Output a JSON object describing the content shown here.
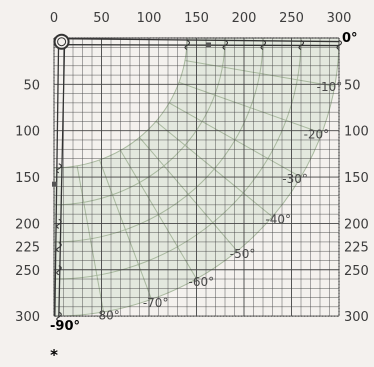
{
  "diagram": {
    "x_ticks": [
      "0",
      "50",
      "100",
      "150",
      "200",
      "250",
      "300"
    ],
    "x_tick_values": [
      0,
      50,
      100,
      150,
      200,
      250,
      300
    ],
    "y_left_ticks": [
      "50",
      "100",
      "150",
      "200",
      "225",
      "250",
      "300"
    ],
    "y_right_ticks": [
      "50",
      "100",
      "150",
      "200",
      "225",
      "250",
      "300"
    ],
    "y_tick_values": [
      50,
      100,
      150,
      200,
      225,
      250,
      300
    ],
    "angle_labels": [
      "0°",
      "-10°",
      "-20°",
      "-30°",
      "-40°",
      "-50°",
      "-60°",
      "-70°",
      "-80°",
      "-90°"
    ],
    "angle_values": [
      0,
      -10,
      -20,
      -30,
      -40,
      -50,
      -60,
      -70,
      -80,
      -90
    ],
    "footnote": "*",
    "colors": {
      "background": "#f4f1ee",
      "grid": "#444444",
      "arc_region": "#dde4d8",
      "arc_lines": "#a9b99f",
      "boom": "#333333"
    }
  }
}
